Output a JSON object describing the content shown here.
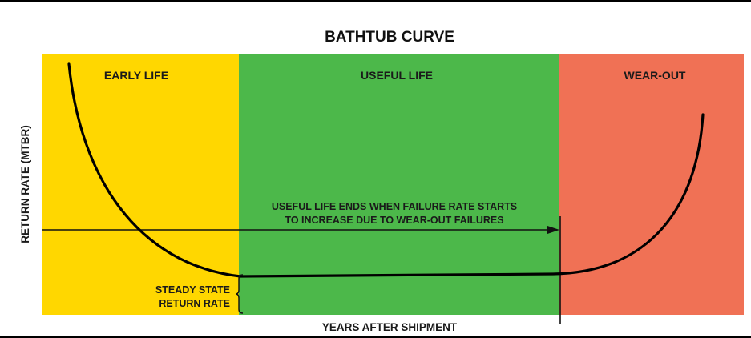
{
  "title": "BATHTUB CURVE",
  "regions": [
    {
      "label": "EARLY LIFE",
      "color": "#FFD700"
    },
    {
      "label": "USEFUL LIFE",
      "color": "#4CB84A"
    },
    {
      "label": "WEAR-OUT",
      "color": "#F07155"
    }
  ],
  "annotation": {
    "line1": "USEFUL LIFE ENDS WHEN FAILURE RATE STARTS",
    "line2": "TO INCREASE DUE TO WEAR-OUT FAILURES"
  },
  "steady_state": {
    "line1": "STEADY STATE",
    "line2": "RETURN RATE"
  },
  "axes": {
    "x_label": "YEARS AFTER SHIPMENT",
    "y_label": "RETURN RATE (MTBR)"
  }
}
